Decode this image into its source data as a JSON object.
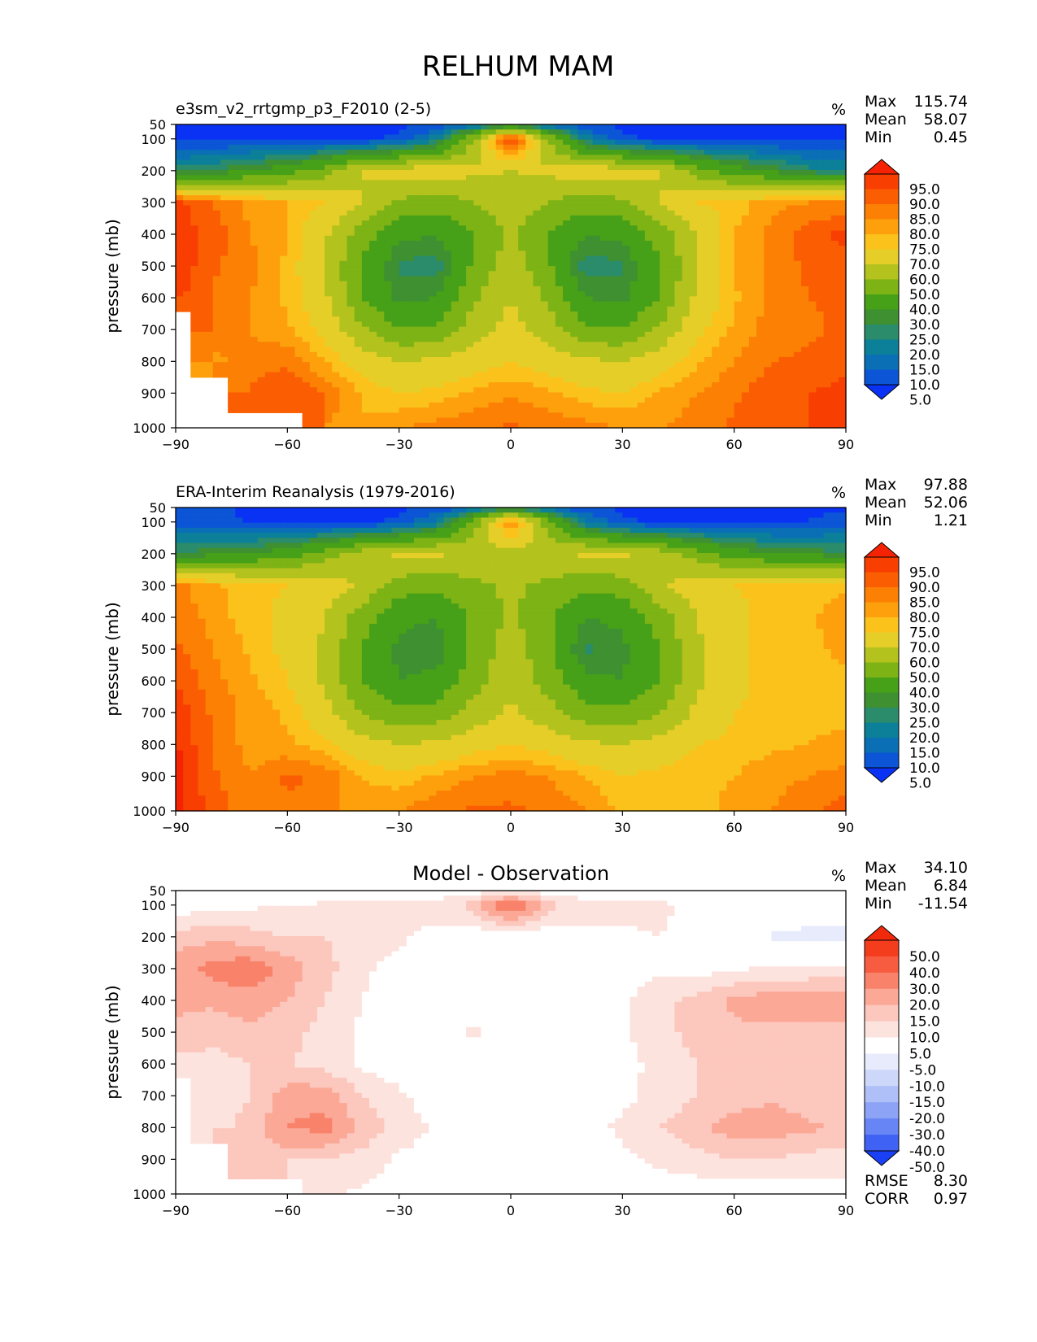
{
  "figure_title": "RELHUM MAM",
  "colors": {
    "abs_levels": [
      5,
      10,
      15,
      20,
      25,
      30,
      40,
      50,
      60,
      70,
      75,
      80,
      85,
      90,
      95
    ],
    "abs_palette": [
      "#0a32f5",
      "#0b55d6",
      "#0a6fb5",
      "#0b8098",
      "#2a8c6a",
      "#3e9030",
      "#46a018",
      "#7db314",
      "#b3c21c",
      "#e6ce28",
      "#fbc21c",
      "#fda00c",
      "#fb8004",
      "#fb5e02",
      "#f83e01",
      "#f52303"
    ],
    "diff_levels": [
      -50,
      -40,
      -30,
      -20,
      -15,
      -10,
      -5,
      5,
      10,
      15,
      20,
      30,
      40,
      50
    ],
    "diff_palette": [
      "#1a40f5",
      "#3f62f5",
      "#6785f5",
      "#8da3f5",
      "#afbff7",
      "#cdd7fa",
      "#e7ebfc",
      "#ffffff",
      "#fde3de",
      "#fcc7bd",
      "#fba896",
      "#f9826b",
      "#f75b40",
      "#f43d1d",
      "#f22a0d"
    ]
  },
  "chart_data": [
    {
      "type": "heatmap",
      "title": "e3sm_v2_rrtgmp_p3_F2010 (2-5)",
      "units": "%",
      "ylabel": "pressure (mb)",
      "xlabel": "",
      "xlim": [
        -90,
        90
      ],
      "ylim": [
        1000,
        50
      ],
      "x_ticks": [
        -90,
        -60,
        -30,
        0,
        30,
        60,
        90
      ],
      "y_ticks": [
        50,
        100,
        200,
        300,
        400,
        500,
        600,
        700,
        800,
        900,
        1000
      ],
      "stats": [
        {
          "label": "Max",
          "value": "115.74"
        },
        {
          "label": "Mean",
          "value": "58.07"
        },
        {
          "label": "Min",
          "value": "0.45"
        }
      ],
      "colorbar_labels": [
        "95.0",
        "90.0",
        "85.0",
        "80.0",
        "75.0",
        "70.0",
        "60.0",
        "50.0",
        "40.0",
        "30.0",
        "25.0",
        "20.0",
        "15.0",
        "10.0",
        "5.0"
      ],
      "palette": "abs",
      "lat": [
        -90,
        -80,
        -70,
        -60,
        -50,
        -40,
        -30,
        -20,
        -10,
        0,
        10,
        20,
        30,
        40,
        50,
        60,
        70,
        80,
        90
      ],
      "lev": [
        50,
        100,
        200,
        300,
        400,
        500,
        600,
        700,
        800,
        900,
        1000
      ],
      "values": [
        [
          4,
          4,
          4,
          4,
          4,
          4,
          4,
          5,
          10,
          22,
          10,
          5,
          4,
          4,
          4,
          4,
          4,
          4,
          4
        ],
        [
          4,
          4,
          4,
          4,
          4,
          4,
          6,
          18,
          50,
          98,
          50,
          18,
          6,
          4,
          4,
          4,
          4,
          4,
          4
        ],
        [
          22,
          25,
          30,
          35,
          45,
          60,
          65,
          66,
          62,
          60,
          62,
          66,
          65,
          60,
          45,
          35,
          28,
          22,
          20
        ],
        [
          92,
          85,
          78,
          75,
          70,
          60,
          48,
          45,
          50,
          55,
          50,
          45,
          48,
          60,
          70,
          72,
          78,
          80,
          80
        ],
        [
          93,
          88,
          80,
          75,
          62,
          45,
          32,
          30,
          40,
          52,
          40,
          30,
          32,
          45,
          60,
          75,
          82,
          88,
          92
        ],
        [
          94,
          86,
          82,
          74,
          60,
          38,
          24,
          22,
          42,
          56,
          42,
          22,
          24,
          38,
          60,
          75,
          82,
          86,
          88
        ],
        [
          92,
          84,
          80,
          74,
          62,
          40,
          28,
          30,
          48,
          60,
          48,
          30,
          28,
          40,
          62,
          74,
          82,
          85,
          86
        ],
        [
          null,
          85,
          80,
          76,
          68,
          52,
          40,
          42,
          55,
          64,
          55,
          42,
          40,
          52,
          68,
          76,
          82,
          84,
          86
        ],
        [
          null,
          78,
          82,
          84,
          75,
          66,
          60,
          62,
          66,
          70,
          66,
          62,
          60,
          66,
          74,
          80,
          85,
          86,
          88
        ],
        [
          null,
          null,
          86,
          90,
          85,
          74,
          70,
          72,
          76,
          79,
          76,
          72,
          70,
          76,
          80,
          84,
          88,
          90,
          92
        ],
        [
          null,
          null,
          null,
          null,
          80,
          76,
          80,
          82,
          84,
          86,
          84,
          82,
          80,
          80,
          82,
          86,
          88,
          90,
          94
        ]
      ]
    },
    {
      "type": "heatmap",
      "title": "ERA-Interim Reanalysis (1979-2016)",
      "units": "%",
      "ylabel": "pressure (mb)",
      "xlabel": "",
      "xlim": [
        -90,
        90
      ],
      "ylim": [
        1000,
        50
      ],
      "x_ticks": [
        -90,
        -60,
        -30,
        0,
        30,
        60,
        90
      ],
      "y_ticks": [
        50,
        100,
        200,
        300,
        400,
        500,
        600,
        700,
        800,
        900,
        1000
      ],
      "stats": [
        {
          "label": "Max",
          "value": "97.88"
        },
        {
          "label": "Mean",
          "value": "52.06"
        },
        {
          "label": "Min",
          "value": "1.21"
        }
      ],
      "colorbar_labels": [
        "95.0",
        "90.0",
        "85.0",
        "80.0",
        "75.0",
        "70.0",
        "60.0",
        "50.0",
        "40.0",
        "30.0",
        "25.0",
        "20.0",
        "15.0",
        "10.0",
        "5.0"
      ],
      "palette": "abs",
      "lat": [
        -90,
        -80,
        -70,
        -60,
        -50,
        -40,
        -30,
        -20,
        -10,
        0,
        10,
        20,
        30,
        40,
        50,
        60,
        70,
        80,
        90
      ],
      "lev": [
        50,
        100,
        200,
        300,
        400,
        500,
        600,
        700,
        800,
        900,
        1000
      ],
      "values": [
        [
          8,
          6,
          4,
          4,
          4,
          4,
          4,
          5,
          10,
          20,
          10,
          5,
          4,
          4,
          4,
          4,
          4,
          4,
          4
        ],
        [
          8,
          6,
          5,
          4,
          4,
          4,
          6,
          16,
          45,
          84,
          45,
          16,
          6,
          4,
          4,
          4,
          4,
          5,
          8
        ],
        [
          25,
          28,
          30,
          35,
          45,
          55,
          62,
          62,
          58,
          56,
          58,
          62,
          62,
          55,
          45,
          35,
          30,
          28,
          26
        ],
        [
          82,
          76,
          72,
          70,
          66,
          58,
          45,
          42,
          48,
          52,
          48,
          42,
          45,
          58,
          66,
          70,
          72,
          74,
          74
        ],
        [
          84,
          78,
          72,
          68,
          60,
          45,
          32,
          30,
          42,
          52,
          42,
          30,
          32,
          45,
          60,
          68,
          72,
          74,
          78
        ],
        [
          86,
          80,
          74,
          68,
          58,
          40,
          28,
          26,
          42,
          56,
          42,
          24,
          28,
          40,
          58,
          68,
          72,
          74,
          76
        ],
        [
          90,
          82,
          76,
          70,
          58,
          40,
          30,
          32,
          46,
          58,
          46,
          32,
          30,
          40,
          58,
          68,
          72,
          74,
          74
        ],
        [
          94,
          84,
          78,
          74,
          64,
          50,
          42,
          44,
          54,
          62,
          54,
          44,
          42,
          50,
          62,
          70,
          72,
          74,
          74
        ],
        [
          96,
          84,
          78,
          76,
          72,
          64,
          60,
          62,
          66,
          70,
          66,
          62,
          60,
          64,
          70,
          72,
          74,
          75,
          76
        ],
        [
          97,
          86,
          80,
          86,
          84,
          75,
          72,
          76,
          80,
          82,
          80,
          75,
          70,
          72,
          74,
          75,
          78,
          80,
          82
        ],
        [
          97,
          88,
          82,
          84,
          82,
          78,
          80,
          84,
          86,
          86,
          84,
          80,
          74,
          72,
          74,
          76,
          80,
          84,
          88
        ]
      ]
    },
    {
      "type": "heatmap",
      "title": "Model - Observation",
      "units": "%",
      "ylabel": "pressure (mb)",
      "xlabel": "",
      "xlim": [
        -90,
        90
      ],
      "ylim": [
        1000,
        50
      ],
      "x_ticks": [
        -90,
        -60,
        -30,
        0,
        30,
        60,
        90
      ],
      "y_ticks": [
        50,
        100,
        200,
        300,
        400,
        500,
        600,
        700,
        800,
        900,
        1000
      ],
      "stats": [
        {
          "label": "Max",
          "value": "34.10"
        },
        {
          "label": "Mean",
          "value": "6.84"
        },
        {
          "label": "Min",
          "value": "-11.54"
        }
      ],
      "extra_stats": [
        {
          "label": "RMSE",
          "value": "8.30"
        },
        {
          "label": "CORR",
          "value": "0.97"
        }
      ],
      "colorbar_labels": [
        "50.0",
        "40.0",
        "30.0",
        "20.0",
        "15.0",
        "10.0",
        "5.0",
        "-5.0",
        "-10.0",
        "-15.0",
        "-20.0",
        "-30.0",
        "-40.0",
        "-50.0"
      ],
      "palette": "diff",
      "lat": [
        -90,
        -80,
        -70,
        -60,
        -50,
        -40,
        -30,
        -20,
        -10,
        0,
        10,
        20,
        30,
        40,
        50,
        60,
        70,
        80,
        90
      ],
      "lev": [
        50,
        100,
        200,
        300,
        400,
        500,
        600,
        700,
        800,
        900,
        1000
      ],
      "values": [
        [
          -6,
          -4,
          0,
          0,
          0,
          0,
          0,
          0,
          2,
          4,
          2,
          0,
          0,
          0,
          0,
          0,
          0,
          0,
          0
        ],
        [
          2,
          3,
          4,
          5,
          6,
          6,
          7,
          8,
          12,
          28,
          12,
          8,
          7,
          6,
          4,
          3,
          2,
          2,
          2
        ],
        [
          12,
          14,
          12,
          10,
          10,
          8,
          6,
          3,
          2,
          1,
          2,
          3,
          4,
          5,
          3,
          -2,
          -6,
          -8,
          -8
        ],
        [
          18,
          22,
          24,
          18,
          12,
          6,
          3,
          1,
          0,
          -4,
          0,
          3,
          4,
          4,
          3,
          4,
          6,
          6,
          6
        ],
        [
          16,
          16,
          18,
          15,
          10,
          5,
          3,
          2,
          1,
          0,
          2,
          3,
          4,
          8,
          12,
          16,
          18,
          18,
          20
        ],
        [
          14,
          12,
          14,
          12,
          8,
          4,
          2,
          2,
          6,
          3,
          2,
          2,
          4,
          8,
          12,
          14,
          14,
          14,
          12
        ],
        [
          8,
          8,
          10,
          10,
          8,
          4,
          2,
          1,
          2,
          2,
          2,
          2,
          4,
          6,
          10,
          12,
          12,
          12,
          12
        ],
        [
          null,
          6,
          10,
          18,
          18,
          10,
          6,
          2,
          2,
          3,
          1,
          2,
          4,
          6,
          10,
          12,
          14,
          12,
          12
        ],
        [
          null,
          8,
          12,
          20,
          22,
          14,
          8,
          4,
          2,
          3,
          2,
          3,
          6,
          10,
          14,
          18,
          18,
          16,
          14
        ],
        [
          null,
          null,
          14,
          12,
          10,
          8,
          4,
          3,
          2,
          2,
          2,
          3,
          4,
          6,
          8,
          10,
          10,
          8,
          8
        ],
        [
          null,
          null,
          null,
          null,
          6,
          4,
          3,
          2,
          2,
          3,
          2,
          2,
          2,
          2,
          2,
          2,
          2,
          2,
          2
        ]
      ]
    }
  ]
}
